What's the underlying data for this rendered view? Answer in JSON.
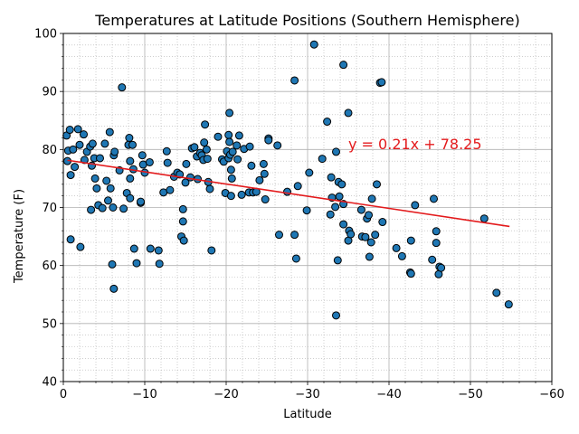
{
  "chart_data": {
    "type": "scatter",
    "title": "Temperatures at Latitude Positions (Southern Hemisphere)",
    "xlabel": "Latitude",
    "ylabel": "Temperature (F)",
    "xlim": [
      0,
      -60
    ],
    "ylim": [
      40,
      100
    ],
    "x_ticks": [
      0,
      -10,
      -20,
      -30,
      -40,
      -50,
      -60
    ],
    "y_ticks": [
      40,
      50,
      60,
      70,
      80,
      90,
      100
    ],
    "x_tick_labels": [
      "0",
      "−10",
      "−20",
      "−30",
      "−40",
      "−50",
      "−60"
    ],
    "y_tick_labels": [
      "40",
      "50",
      "60",
      "70",
      "80",
      "90",
      "100"
    ],
    "grid": true,
    "minor_grid": true,
    "marker_color": "#1f77b4",
    "marker_edge_color": "#000000",
    "regression": {
      "equation": "y = 0.21x + 78.25",
      "slope": 0.21,
      "intercept": 78.25,
      "x_range": [
        -0.5,
        -54.8
      ],
      "color": "#e31a1c"
    },
    "points": [
      [
        -0.4,
        82.4
      ],
      [
        -0.8,
        83.4
      ],
      [
        -0.6,
        79.8
      ],
      [
        -1.2,
        80.0
      ],
      [
        -0.5,
        78.0
      ],
      [
        -0.9,
        75.6
      ],
      [
        -0.9,
        64.5
      ],
      [
        -1.4,
        77.0
      ],
      [
        -1.8,
        83.5
      ],
      [
        -2.0,
        80.8
      ],
      [
        -2.1,
        63.2
      ],
      [
        -2.5,
        82.6
      ],
      [
        -2.6,
        78.2
      ],
      [
        -2.9,
        79.6
      ],
      [
        -3.3,
        80.5
      ],
      [
        -3.5,
        77.2
      ],
      [
        -3.6,
        81.0
      ],
      [
        -3.8,
        78.5
      ],
      [
        -3.9,
        75.0
      ],
      [
        -3.4,
        69.6
      ],
      [
        -4.1,
        73.3
      ],
      [
        -4.5,
        78.5
      ],
      [
        -4.3,
        70.4
      ],
      [
        -4.8,
        69.9
      ],
      [
        -5.1,
        81.0
      ],
      [
        -5.3,
        74.6
      ],
      [
        -5.7,
        83.0
      ],
      [
        -5.5,
        71.2
      ],
      [
        -5.8,
        73.3
      ],
      [
        -6.0,
        60.2
      ],
      [
        -6.1,
        70.0
      ],
      [
        -6.2,
        79.0
      ],
      [
        -6.3,
        79.6
      ],
      [
        -6.2,
        56.0
      ],
      [
        -6.9,
        76.4
      ],
      [
        -7.2,
        90.7
      ],
      [
        -7.4,
        69.8
      ],
      [
        -7.8,
        72.5
      ],
      [
        -8.1,
        82.0
      ],
      [
        -8.0,
        80.8
      ],
      [
        -8.2,
        78.0
      ],
      [
        -8.2,
        75.0
      ],
      [
        -8.2,
        71.6
      ],
      [
        -8.5,
        80.8
      ],
      [
        -8.6,
        76.6
      ],
      [
        -8.7,
        62.9
      ],
      [
        -9.0,
        60.4
      ],
      [
        -9.5,
        70.8
      ],
      [
        -9.7,
        79.0
      ],
      [
        -9.5,
        71.0
      ],
      [
        -9.8,
        77.4
      ],
      [
        -10.0,
        76.0
      ],
      [
        -10.6,
        77.8
      ],
      [
        -10.7,
        62.9
      ],
      [
        -11.7,
        62.6
      ],
      [
        -11.8,
        60.3
      ],
      [
        -12.3,
        72.6
      ],
      [
        -12.7,
        79.7
      ],
      [
        -12.8,
        77.7
      ],
      [
        -13.1,
        73.0
      ],
      [
        -13.6,
        75.3
      ],
      [
        -14.0,
        76.0
      ],
      [
        -14.3,
        75.7
      ],
      [
        -14.5,
        65.0
      ],
      [
        -14.7,
        69.7
      ],
      [
        -14.7,
        67.6
      ],
      [
        -14.8,
        64.3
      ],
      [
        -15.0,
        74.3
      ],
      [
        -15.1,
        77.5
      ],
      [
        -15.6,
        75.2
      ],
      [
        -15.8,
        80.2
      ],
      [
        -16.1,
        80.4
      ],
      [
        -16.4,
        78.8
      ],
      [
        -16.5,
        74.9
      ],
      [
        -16.8,
        79.4
      ],
      [
        -17.0,
        79.0
      ],
      [
        -17.2,
        78.2
      ],
      [
        -17.3,
        81.2
      ],
      [
        -17.4,
        84.3
      ],
      [
        -17.6,
        80.0
      ],
      [
        -17.7,
        78.4
      ],
      [
        -17.8,
        74.4
      ],
      [
        -18.0,
        73.2
      ],
      [
        -18.2,
        62.6
      ],
      [
        -19.0,
        82.2
      ],
      [
        -19.5,
        78.3
      ],
      [
        -19.7,
        77.9
      ],
      [
        -19.9,
        72.5
      ],
      [
        -20.1,
        79.7
      ],
      [
        -20.3,
        78.5
      ],
      [
        -20.3,
        82.5
      ],
      [
        -20.4,
        81.3
      ],
      [
        -20.4,
        86.3
      ],
      [
        -20.5,
        79.1
      ],
      [
        -20.6,
        76.5
      ],
      [
        -20.6,
        72.0
      ],
      [
        -20.7,
        75.0
      ],
      [
        -20.8,
        79.6
      ],
      [
        -21.3,
        80.7
      ],
      [
        -21.4,
        78.3
      ],
      [
        -21.6,
        82.4
      ],
      [
        -21.9,
        72.2
      ],
      [
        -22.2,
        80.1
      ],
      [
        -22.8,
        72.6
      ],
      [
        -22.9,
        80.5
      ],
      [
        -23.1,
        77.2
      ],
      [
        -23.3,
        72.6
      ],
      [
        -23.7,
        72.7
      ],
      [
        -24.1,
        74.7
      ],
      [
        -24.6,
        77.5
      ],
      [
        -24.7,
        75.8
      ],
      [
        -24.8,
        71.4
      ],
      [
        -25.2,
        81.9
      ],
      [
        -25.2,
        81.6
      ],
      [
        -26.3,
        80.7
      ],
      [
        -26.5,
        65.3
      ],
      [
        -27.5,
        72.7
      ],
      [
        -28.4,
        91.9
      ],
      [
        -28.4,
        65.3
      ],
      [
        -28.6,
        61.2
      ],
      [
        -28.8,
        73.7
      ],
      [
        -29.9,
        69.5
      ],
      [
        -30.2,
        76.0
      ],
      [
        -30.8,
        98.1
      ],
      [
        -31.8,
        78.4
      ],
      [
        -32.4,
        84.8
      ],
      [
        -32.8,
        68.8
      ],
      [
        -32.9,
        75.2
      ],
      [
        -33.0,
        71.7
      ],
      [
        -33.4,
        70.1
      ],
      [
        -33.5,
        79.6
      ],
      [
        -33.5,
        51.4
      ],
      [
        -33.7,
        60.9
      ],
      [
        -33.8,
        74.4
      ],
      [
        -33.9,
        71.9
      ],
      [
        -34.2,
        74.0
      ],
      [
        -34.4,
        70.6
      ],
      [
        -34.4,
        94.6
      ],
      [
        -34.4,
        67.1
      ],
      [
        -35.0,
        86.3
      ],
      [
        -35.1,
        66.0
      ],
      [
        -35.0,
        64.3
      ],
      [
        -35.3,
        65.4
      ],
      [
        -36.6,
        69.6
      ],
      [
        -36.7,
        65.0
      ],
      [
        -37.1,
        64.9
      ],
      [
        -37.3,
        68.1
      ],
      [
        -37.5,
        68.7
      ],
      [
        -37.6,
        61.5
      ],
      [
        -37.8,
        64.0
      ],
      [
        -37.9,
        71.5
      ],
      [
        -38.3,
        65.3
      ],
      [
        -38.5,
        74.0
      ],
      [
        -38.9,
        91.5
      ],
      [
        -39.1,
        91.6
      ],
      [
        -39.2,
        67.5
      ],
      [
        -40.9,
        63.0
      ],
      [
        -41.6,
        61.6
      ],
      [
        -42.6,
        58.8
      ],
      [
        -42.7,
        58.6
      ],
      [
        -42.7,
        64.3
      ],
      [
        -43.2,
        70.4
      ],
      [
        -45.3,
        61.0
      ],
      [
        -45.5,
        71.5
      ],
      [
        -45.8,
        65.9
      ],
      [
        -45.8,
        63.9
      ],
      [
        -46.1,
        58.5
      ],
      [
        -46.2,
        59.8
      ],
      [
        -46.4,
        59.6
      ],
      [
        -51.7,
        68.1
      ],
      [
        -53.2,
        55.3
      ],
      [
        -54.7,
        53.3
      ]
    ]
  }
}
